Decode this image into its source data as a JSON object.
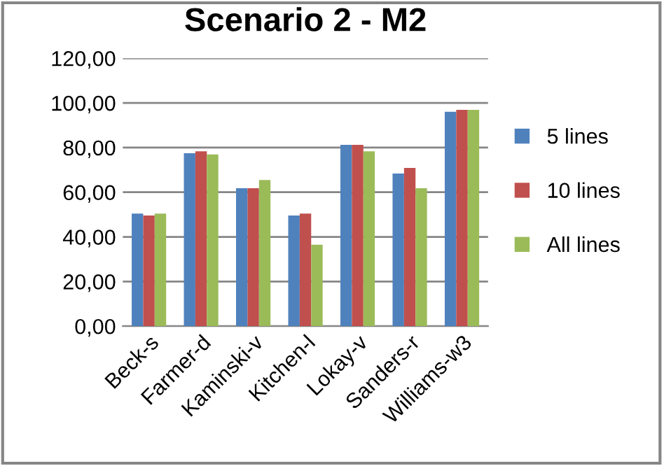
{
  "chart_data": {
    "type": "bar",
    "title": "Scenario 2 - M2",
    "categories": [
      "Beck-s",
      "Farmer-d",
      "Kaminski-v",
      "Kitchen-l",
      "Lokay-v",
      "Sanders-r",
      "Williams-w3"
    ],
    "series": [
      {
        "name": "5 lines",
        "color": "#4f81bd",
        "values": [
          50.4,
          77.5,
          61.8,
          49.6,
          81.2,
          68.4,
          96.0
        ]
      },
      {
        "name": "10 lines",
        "color": "#c0504d",
        "values": [
          49.6,
          78.3,
          61.8,
          50.4,
          81.2,
          70.9,
          96.9
        ]
      },
      {
        "name": "All lines",
        "color": "#9bbb59",
        "values": [
          50.4,
          76.9,
          65.5,
          36.5,
          78.3,
          61.8,
          96.9
        ]
      }
    ],
    "ylim": [
      0,
      120
    ],
    "yticks": [
      {
        "value": 0,
        "label": "0,00"
      },
      {
        "value": 20,
        "label": "20,00"
      },
      {
        "value": 40,
        "label": "40,00"
      },
      {
        "value": 60,
        "label": "60,00"
      },
      {
        "value": 80,
        "label": "80,00"
      },
      {
        "value": 100,
        "label": "100,00"
      },
      {
        "value": 120,
        "label": "120,00"
      }
    ],
    "grid": "y",
    "legend": "right"
  }
}
